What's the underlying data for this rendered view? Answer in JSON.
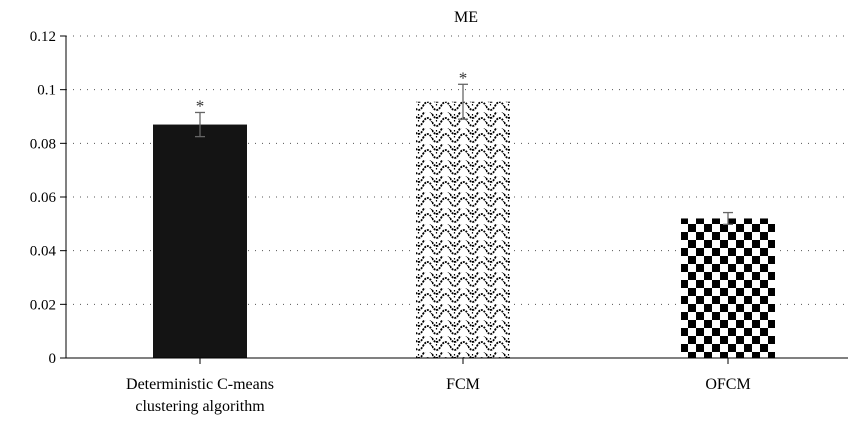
{
  "chart_data": {
    "type": "bar",
    "title": "ME",
    "xlabel": "",
    "ylabel": "",
    "ylim": [
      0,
      0.12
    ],
    "yticks": [
      "0",
      "0.02",
      "0.04",
      "0.06",
      "0.08",
      "0.1",
      "0.12"
    ],
    "grid": "horizontal dotted",
    "categories": [
      [
        "Deterministic C-means",
        "clustering algorithm"
      ],
      [
        "FCM"
      ],
      [
        "OFCM"
      ]
    ],
    "values": [
      0.087,
      0.0955,
      0.052
    ],
    "errors": [
      0.0045,
      0.0065,
      0.0022
    ],
    "significance": [
      "*",
      "*",
      ""
    ],
    "fills": [
      "solid-black",
      "wave-pattern",
      "checkerboard"
    ],
    "colors": {
      "bar_dark": "#141414",
      "axis": "#000000",
      "grid": "#555555",
      "error": "#666666"
    }
  }
}
